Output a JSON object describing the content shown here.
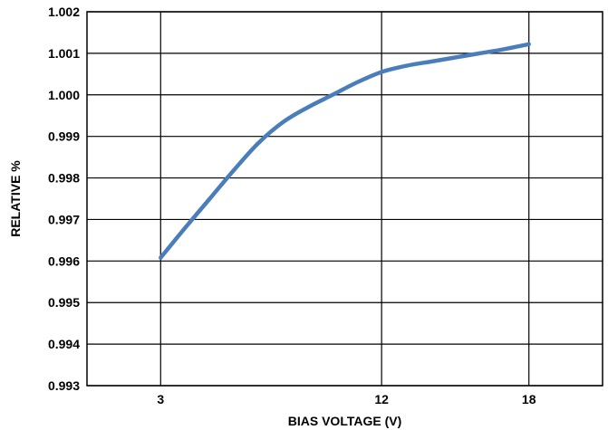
{
  "chart_data": {
    "type": "line",
    "xlabel": "BIAS VOLTAGE (V)",
    "ylabel": "RELATIVE %",
    "x_ticks": [
      3,
      12,
      18
    ],
    "y_ticks": [
      "1.002",
      "1.001",
      "1.000",
      "0.999",
      "0.998",
      "0.997",
      "0.996",
      "0.995",
      "0.994",
      "0.993"
    ],
    "xlim": [
      0,
      21
    ],
    "ylim": [
      0.993,
      1.002
    ],
    "grid": true,
    "line_color": "#4a7ebb",
    "series": [
      {
        "x": [
          3,
          4,
          5,
          6,
          7,
          8,
          9,
          10,
          11,
          12,
          13,
          14,
          15,
          16,
          17,
          18
        ],
        "y": [
          0.99608,
          0.9968,
          0.9975,
          0.9982,
          0.99885,
          0.99935,
          0.9997,
          1.0,
          1.0003,
          1.00055,
          1.0007,
          1.0008,
          1.0009,
          1.001,
          1.0011,
          1.00122
        ]
      }
    ]
  }
}
